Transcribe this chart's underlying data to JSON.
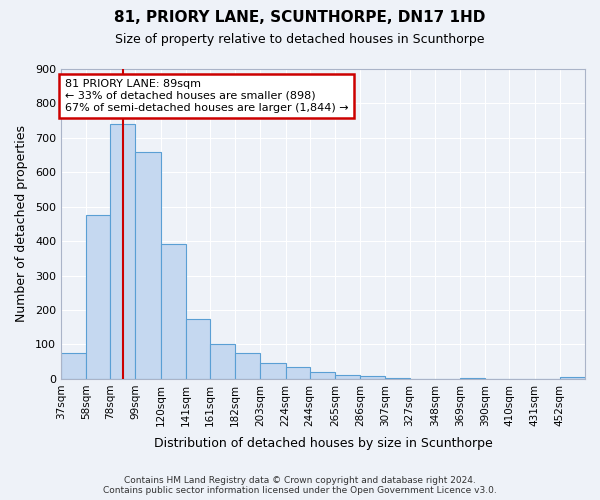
{
  "title": "81, PRIORY LANE, SCUNTHORPE, DN17 1HD",
  "subtitle": "Size of property relative to detached houses in Scunthorpe",
  "xlabel": "Distribution of detached houses by size in Scunthorpe",
  "ylabel": "Number of detached properties",
  "bar_color": "#c5d8f0",
  "bar_edge_color": "#5a9fd4",
  "background_color": "#eef2f8",
  "grid_color": "#ffffff",
  "bin_labels": [
    "37sqm",
    "58sqm",
    "78sqm",
    "99sqm",
    "120sqm",
    "141sqm",
    "161sqm",
    "182sqm",
    "203sqm",
    "224sqm",
    "244sqm",
    "265sqm",
    "286sqm",
    "307sqm",
    "327sqm",
    "348sqm",
    "369sqm",
    "390sqm",
    "410sqm",
    "431sqm",
    "452sqm"
  ],
  "bin_edges": [
    37,
    58,
    78,
    99,
    120,
    141,
    161,
    182,
    203,
    224,
    244,
    265,
    286,
    307,
    327,
    348,
    369,
    390,
    410,
    431,
    452
  ],
  "bar_heights": [
    75,
    475,
    740,
    660,
    392,
    175,
    100,
    75,
    46,
    35,
    20,
    10,
    7,
    3,
    0,
    0,
    2,
    0,
    0,
    0,
    5
  ],
  "ylim": [
    0,
    900
  ],
  "yticks": [
    0,
    100,
    200,
    300,
    400,
    500,
    600,
    700,
    800,
    900
  ],
  "property_line_x": 89,
  "property_line_color": "#cc0000",
  "annotation_text_line1": "81 PRIORY LANE: 89sqm",
  "annotation_text_line2": "← 33% of detached houses are smaller (898)",
  "annotation_text_line3": "67% of semi-detached houses are larger (1,844) →",
  "annotation_box_color": "#ffffff",
  "annotation_box_edge_color": "#cc0000",
  "footer_line1": "Contains HM Land Registry data © Crown copyright and database right 2024.",
  "footer_line2": "Contains public sector information licensed under the Open Government Licence v3.0."
}
